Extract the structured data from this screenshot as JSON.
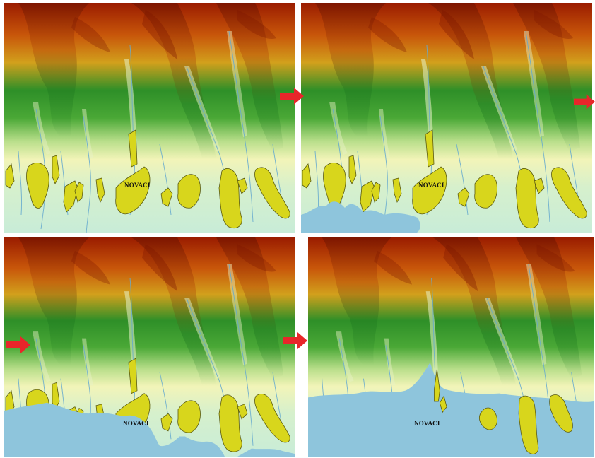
{
  "colors": {
    "high": "#9a1c00",
    "upper": "#d27a10",
    "mid_high": "#c9a21e",
    "mid": "#2e8f28",
    "low": "#9fd07a",
    "lowland": "#f2f4b8",
    "plain": "#c8ecd8",
    "water": "#8ec5dc",
    "settlement": "#d8d61c",
    "settlement_outline": "#5a5a10",
    "river": "#66aacf",
    "arrow": "#e8262a"
  },
  "icons": {
    "arrow": "red-right-arrow-icon"
  },
  "panels": [
    {
      "id": "top-left",
      "flood_level": 0,
      "town_label": "NOVACI",
      "arrow": false
    },
    {
      "id": "top-right",
      "flood_level": 1,
      "town_label": "NOVACI",
      "arrow": true
    },
    {
      "id": "bottom-left",
      "flood_level": 2,
      "town_label": "NOVACI",
      "arrow": true
    },
    {
      "id": "bottom-right",
      "flood_level": 3,
      "town_label": "NOVACI",
      "arrow": true
    }
  ]
}
